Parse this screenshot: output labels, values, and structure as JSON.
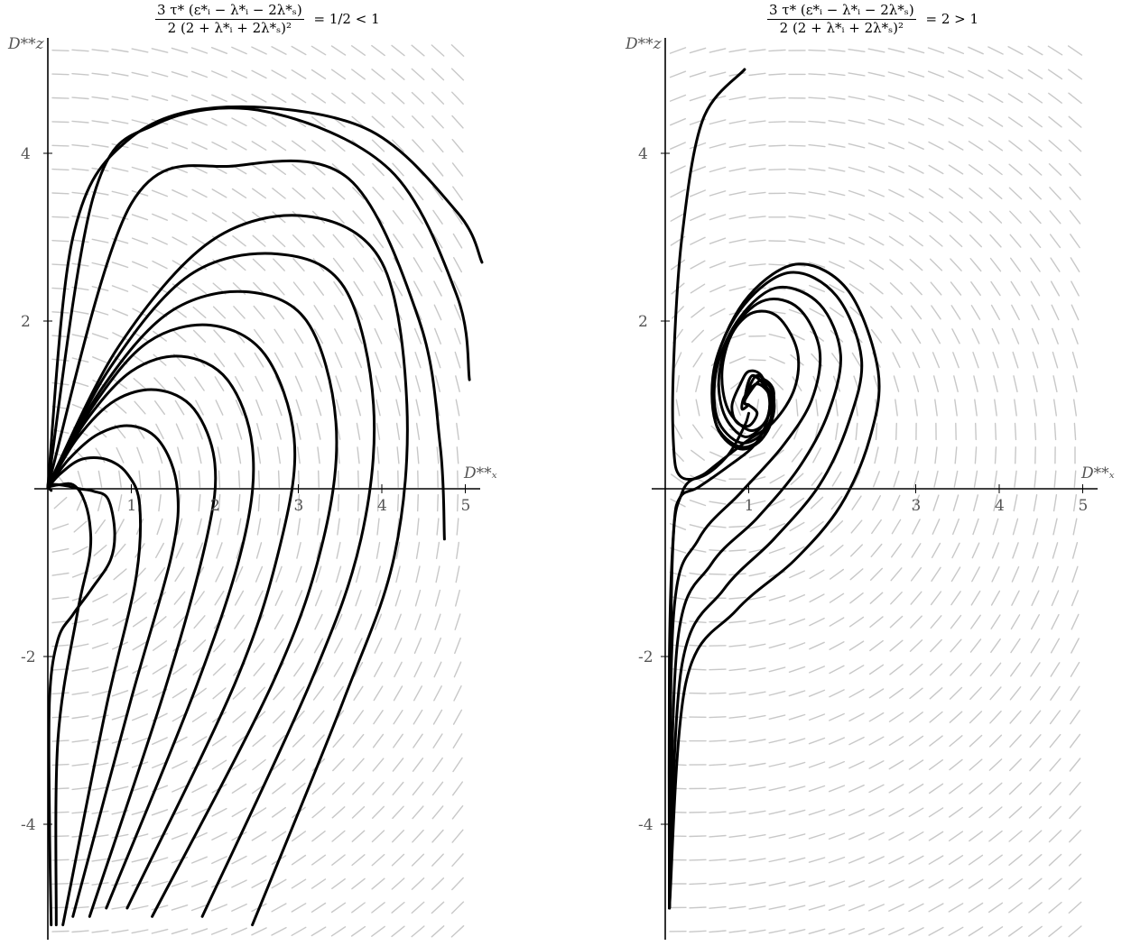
{
  "chart_data": [
    {
      "type": "line",
      "title_numerator": "3 τ* (ε*ᵢ − λ*ᵢ − 2λ*ₛ)",
      "title_denominator": "2 (2 + λ*ᵢ + 2λ*ₛ)²",
      "title_rhs": "= 1/2 < 1",
      "xlabel": "D**ₓ",
      "ylabel": "D**z",
      "xlim": [
        -0.15,
        5.2
      ],
      "ylim": [
        -5.2,
        5.3
      ],
      "x_ticks": [
        1,
        2,
        3,
        4,
        5
      ],
      "y_ticks": [
        -4,
        -2,
        2,
        4
      ],
      "x_tick_labels": [
        "1",
        "2",
        "3",
        "4",
        "5"
      ],
      "y_tick_labels": [
        "-4",
        "-2",
        "2",
        "4"
      ],
      "direction_field": "gray",
      "series": [
        {
          "x": [
            0.04,
            0.02,
            0.02,
            0.12,
            0.3,
            0.52,
            0.75,
            0.8,
            0.72,
            0.55,
            0.38,
            0.25,
            0.12,
            0.04,
            0.02,
            0.02,
            0.04
          ],
          "y": [
            -5.2,
            -4.0,
            -2.5,
            -1.8,
            -1.5,
            -1.2,
            -0.85,
            -0.5,
            -0.12,
            -0.03,
            0.0,
            0.03,
            0.05,
            0.05,
            0.03,
            0.0,
            -0.02
          ]
        },
        {
          "x": [
            0.1,
            0.12,
            0.35,
            0.5,
            0.5,
            0.42,
            0.3,
            0.15,
            0.04,
            0.0
          ],
          "y": [
            -5.2,
            -3.0,
            -1.5,
            -0.8,
            -0.4,
            -0.1,
            0.05,
            0.05,
            0.03,
            0.01
          ]
        },
        {
          "x": [
            0.18,
            0.7,
            1.05,
            1.1,
            0.95,
            0.7,
            0.4,
            0.15,
            0.0
          ],
          "y": [
            -5.2,
            -2.6,
            -1.1,
            -0.2,
            0.18,
            0.35,
            0.35,
            0.18,
            0.01
          ]
        },
        {
          "x": [
            0.3,
            1.0,
            1.48,
            1.55,
            1.35,
            1.0,
            0.6,
            0.25,
            0.0
          ],
          "y": [
            -5.1,
            -2.5,
            -0.8,
            0.0,
            0.55,
            0.75,
            0.65,
            0.35,
            0.01
          ]
        },
        {
          "x": [
            0.5,
            1.4,
            1.9,
            2.0,
            1.75,
            1.3,
            0.8,
            0.35,
            0.0
          ],
          "y": [
            -5.1,
            -2.4,
            -0.6,
            0.3,
            0.95,
            1.18,
            1.05,
            0.6,
            0.01
          ]
        },
        {
          "x": [
            0.7,
            1.8,
            2.35,
            2.45,
            2.15,
            1.6,
            1.0,
            0.45,
            0.0
          ],
          "y": [
            -5.0,
            -2.3,
            -0.6,
            0.5,
            1.3,
            1.58,
            1.4,
            0.8,
            0.02
          ]
        },
        {
          "x": [
            0.95,
            2.25,
            2.8,
            2.95,
            2.6,
            1.95,
            1.2,
            0.55,
            0.0
          ],
          "y": [
            -5.0,
            -2.3,
            -0.6,
            0.6,
            1.6,
            1.95,
            1.75,
            1.0,
            0.02
          ]
        },
        {
          "x": [
            1.25,
            2.7,
            3.3,
            3.45,
            3.1,
            2.35,
            1.45,
            0.65,
            0.0
          ],
          "y": [
            -5.1,
            -2.3,
            -0.6,
            0.8,
            2.0,
            2.35,
            2.1,
            1.2,
            0.02
          ]
        },
        {
          "x": [
            1.85,
            3.15,
            3.75,
            3.9,
            3.55,
            2.75,
            1.7,
            0.75,
            0.0
          ],
          "y": [
            -5.1,
            -2.3,
            -0.6,
            1.0,
            2.4,
            2.8,
            2.55,
            1.45,
            0.03
          ]
        },
        {
          "x": [
            2.45,
            3.55,
            4.15,
            4.3,
            4.0,
            3.1,
            1.95,
            0.85,
            0.0
          ],
          "y": [
            -5.2,
            -2.5,
            -0.8,
            1.0,
            2.7,
            3.25,
            2.95,
            1.7,
            0.03
          ]
        },
        {
          "x": [
            4.75,
            4.7,
            4.45,
            3.6,
            2.25,
            1.0,
            0.0
          ],
          "y": [
            -0.6,
            0.5,
            2.0,
            3.7,
            3.85,
            3.4,
            0.03
          ]
        },
        {
          "x": [
            5.05,
            4.9,
            4.1,
            2.6,
            1.3,
            0.55,
            0.0
          ],
          "y": [
            1.3,
            2.3,
            3.8,
            4.5,
            4.35,
            3.5,
            0.03
          ]
        },
        {
          "x": [
            5.2,
            4.9,
            3.8,
            2.1,
            0.95,
            0.3,
            0.0
          ],
          "y": [
            2.7,
            3.3,
            4.3,
            4.55,
            4.15,
            3.0,
            0.03
          ]
        }
      ]
    },
    {
      "type": "line",
      "title_numerator": "3 τ* (ε*ᵢ − λ*ᵢ − 2λ*ₛ)",
      "title_denominator": "2 (2 + λ*ᵢ + 2λ*ₛ)²",
      "title_rhs": "= 2 > 1",
      "xlabel": "D**ₓ",
      "ylabel": "D**z",
      "xlim": [
        -0.15,
        5.2
      ],
      "ylim": [
        -5.2,
        5.3
      ],
      "x_ticks": [
        1,
        3,
        4,
        5
      ],
      "y_ticks": [
        -4,
        -2,
        2,
        4
      ],
      "x_tick_labels": [
        "1",
        "3",
        "4",
        "5"
      ],
      "y_tick_labels": [
        "-4",
        "-2",
        "2",
        "4"
      ],
      "direction_field": "gray",
      "series": [
        {
          "x": [
            0.95,
            0.45,
            0.2,
            0.1,
            0.1,
            0.18,
            0.45,
            0.75,
            0.95,
            1.0
          ],
          "y": [
            5.0,
            4.4,
            3.0,
            1.5,
            0.5,
            0.15,
            0.15,
            0.4,
            0.75,
            0.9
          ]
        },
        {
          "x": [
            0.05,
            0.05,
            0.1,
            0.18,
            0.4,
            0.8,
            1.05,
            1.2,
            1.25,
            1.15,
            1.0,
            0.9,
            0.8,
            0.85,
            1.0,
            1.1,
            1.0
          ],
          "y": [
            -5.0,
            -2.0,
            -0.5,
            -0.1,
            0.02,
            0.3,
            0.5,
            0.75,
            1.05,
            1.35,
            1.4,
            1.25,
            1.0,
            0.8,
            0.75,
            0.9,
            1.0
          ]
        },
        {
          "x": [
            0.05,
            0.08,
            0.2,
            0.5,
            0.95,
            1.3,
            1.55,
            1.58,
            1.35,
            1.05,
            0.8,
            0.68,
            0.75,
            1.0,
            1.2,
            1.25,
            1.1,
            0.95,
            0.92,
            1.0
          ],
          "y": [
            -5.0,
            -1.0,
            -0.05,
            0.2,
            0.55,
            0.8,
            1.2,
            1.65,
            2.05,
            2.1,
            1.85,
            1.4,
            0.95,
            0.7,
            0.8,
            1.1,
            1.25,
            1.1,
            0.95,
            1.0
          ]
        },
        {
          "x": [
            0.05,
            0.1,
            0.4,
            0.9,
            1.4,
            1.75,
            1.85,
            1.6,
            1.2,
            0.85,
            0.65,
            0.7,
            0.95,
            1.2,
            1.3,
            1.15,
            0.95,
            1.0
          ],
          "y": [
            -5.0,
            -1.5,
            -0.6,
            -0.05,
            0.5,
            1.05,
            1.65,
            2.15,
            2.25,
            1.95,
            1.4,
            0.9,
            0.62,
            0.8,
            1.15,
            1.3,
            1.05,
            1.0
          ]
        },
        {
          "x": [
            0.05,
            0.15,
            0.55,
            1.1,
            1.6,
            1.95,
            2.1,
            1.85,
            1.35,
            0.9,
            0.62,
            0.62,
            0.9,
            1.2,
            1.3,
            1.1,
            0.95,
            1.0
          ],
          "y": [
            -5.0,
            -1.8,
            -0.9,
            -0.35,
            0.25,
            0.9,
            1.6,
            2.2,
            2.4,
            2.05,
            1.45,
            0.85,
            0.55,
            0.7,
            1.1,
            1.35,
            1.05,
            1.0
          ]
        },
        {
          "x": [
            0.05,
            0.2,
            0.7,
            1.3,
            1.85,
            2.2,
            2.35,
            2.05,
            1.5,
            0.95,
            0.6,
            0.6,
            0.9,
            1.2,
            1.3,
            1.05,
            0.95,
            1.0
          ],
          "y": [
            -5.0,
            -2.1,
            -1.2,
            -0.6,
            0.05,
            0.8,
            1.55,
            2.3,
            2.58,
            2.2,
            1.5,
            0.8,
            0.5,
            0.65,
            1.05,
            1.35,
            1.05,
            1.0
          ]
        },
        {
          "x": [
            0.05,
            0.25,
            0.85,
            1.55,
            2.1,
            2.45,
            2.55,
            2.2,
            1.6,
            1.0,
            0.62,
            0.6,
            0.88,
            1.18,
            1.28,
            1.05,
            0.95,
            1.0
          ],
          "y": [
            -5.0,
            -2.3,
            -1.45,
            -0.85,
            -0.2,
            0.6,
            1.4,
            2.35,
            2.68,
            2.3,
            1.55,
            0.8,
            0.48,
            0.62,
            1.05,
            1.35,
            1.05,
            1.0
          ]
        }
      ]
    }
  ]
}
